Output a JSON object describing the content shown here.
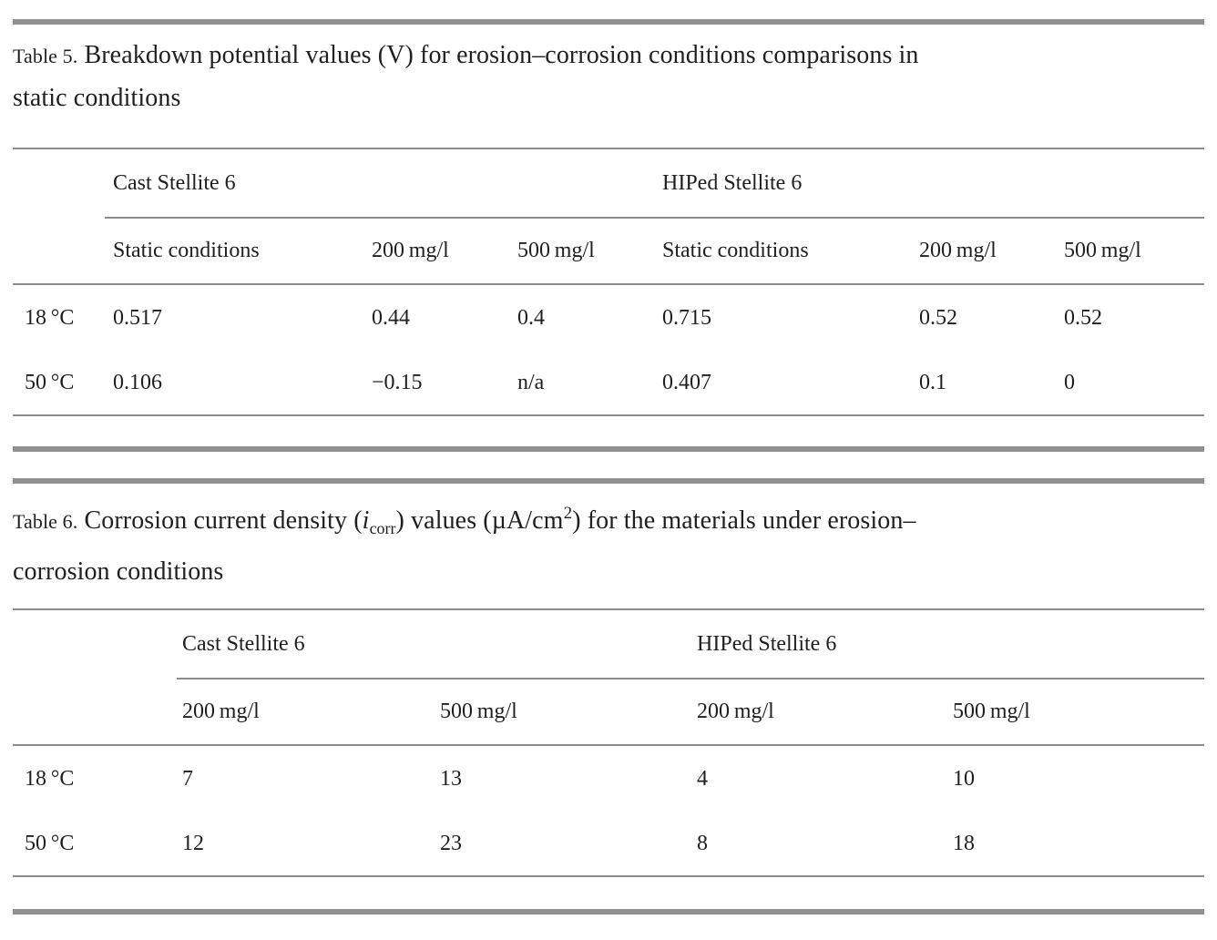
{
  "tables": [
    {
      "caption_label": "Table 5.",
      "caption_segments": [
        {
          "t": "Breakdown potential values (V) for erosion–corrosion conditions comparisons in"
        },
        {
          "br": true
        },
        {
          "t": "static conditions"
        }
      ],
      "group_headers": [
        {
          "label": "Cast Stellite 6"
        },
        {
          "label": "HIPed Stellite 6"
        }
      ],
      "column_headers": [
        "Static conditions",
        "200 mg/l",
        "500 mg/l",
        "Static conditions",
        "200 mg/l",
        "500 mg/l"
      ],
      "rows": [
        {
          "label": "18 °C",
          "values": [
            "0.517",
            "0.44",
            "0.4",
            "0.715",
            "0.52",
            "0.52"
          ]
        },
        {
          "label": "50 °C",
          "values": [
            "0.106",
            "−0.15",
            "n/a",
            "0.407",
            "0.1",
            "0"
          ]
        }
      ]
    },
    {
      "caption_label": "Table 6.",
      "caption_segments": [
        {
          "t": "Corrosion current density ("
        },
        {
          "t": "i",
          "style": "italic"
        },
        {
          "t": "corr",
          "style": "sub"
        },
        {
          "t": ") values (µA/cm"
        },
        {
          "t": "2",
          "style": "sup"
        },
        {
          "t": ") for the materials under erosion–"
        },
        {
          "br": true
        },
        {
          "t": "corrosion conditions"
        }
      ],
      "group_headers": [
        {
          "label": "Cast Stellite 6"
        },
        {
          "label": "HIPed Stellite 6"
        }
      ],
      "column_headers": [
        "200 mg/l",
        "500 mg/l",
        "200 mg/l",
        "500 mg/l"
      ],
      "rows": [
        {
          "label": "18 °C",
          "values": [
            "7",
            "13",
            "4",
            "10"
          ]
        },
        {
          "label": "50 °C",
          "values": [
            "12",
            "23",
            "8",
            "18"
          ]
        }
      ]
    }
  ],
  "colors": {
    "rule": "#8c8c8c",
    "thick_bar": "#909090",
    "text": "#1f1f1f"
  }
}
